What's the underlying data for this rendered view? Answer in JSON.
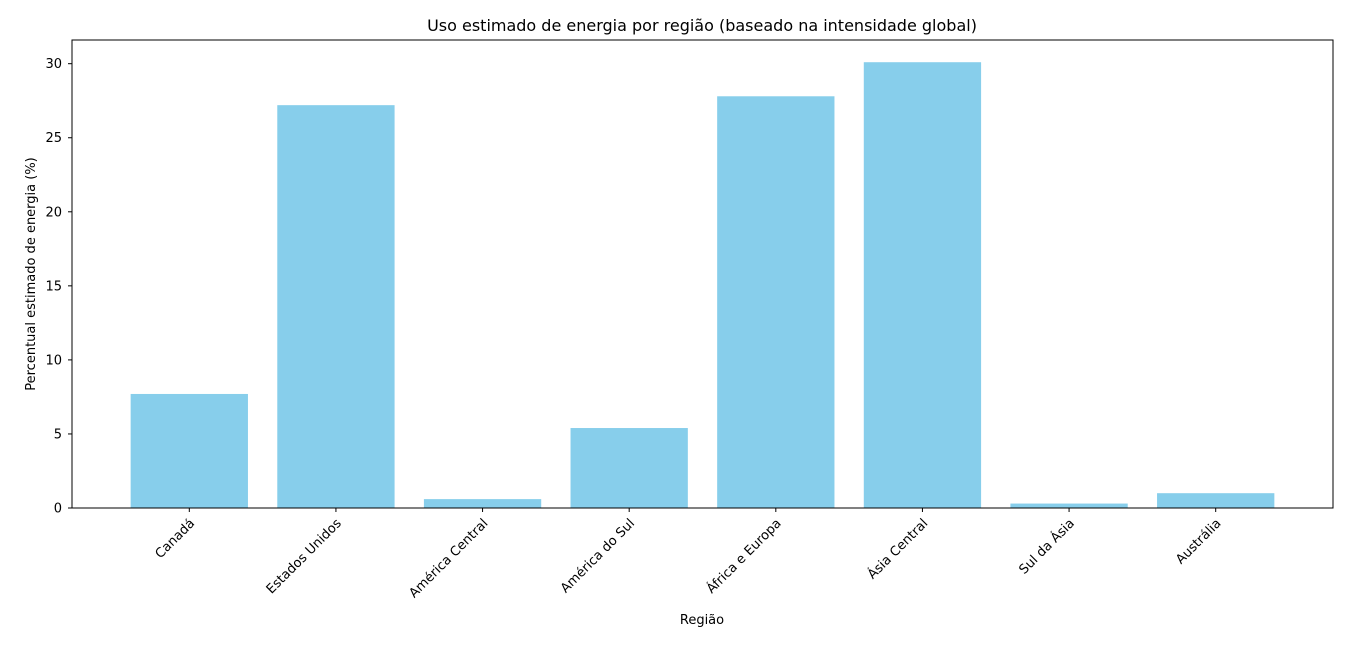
{
  "chart_data": {
    "type": "bar",
    "title": "Uso estimado de energia por região (baseado na intensidade global)",
    "xlabel": "Região",
    "ylabel": "Percentual estimado de energia (%)",
    "categories": [
      "Canadá",
      "Estados Unidos",
      "América Central",
      "América do Sul",
      "África e Europa",
      "Ásia Central",
      "Sul da Ásia",
      "Austrália"
    ],
    "values": [
      7.7,
      27.2,
      0.6,
      5.4,
      27.8,
      30.1,
      0.3,
      1.0
    ],
    "ylim": [
      0,
      31.6
    ],
    "yticks": [
      0,
      5,
      10,
      15,
      20,
      25,
      30
    ],
    "bar_color": "#87CEEB",
    "grid": false,
    "legend": "none",
    "x_tick_rotation_deg": 45
  }
}
